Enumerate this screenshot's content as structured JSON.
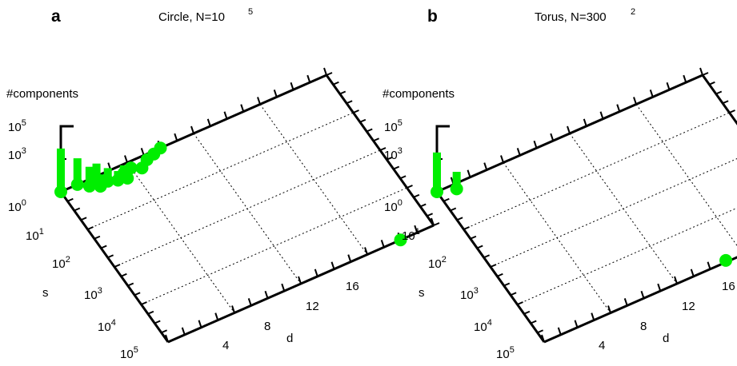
{
  "chart_data": [
    {
      "type": "3d-bar",
      "panel_letter": "a",
      "title": "Circle, N=10",
      "title_exp": "5",
      "zlabel": "#components",
      "xlabel": "s",
      "ylabel": "d",
      "x_scale": "log",
      "z_scale": "log",
      "x_ticks": [
        {
          "base": "10",
          "exp": "1"
        },
        {
          "base": "10",
          "exp": "2"
        },
        {
          "base": "10",
          "exp": "3"
        },
        {
          "base": "10",
          "exp": "4"
        },
        {
          "base": "10",
          "exp": "5"
        }
      ],
      "y_ticks": [
        "4",
        "8",
        "12",
        "16"
      ],
      "z_ticks": [
        {
          "base": "10",
          "exp": "0"
        },
        {
          "base": "10",
          "exp": "3"
        },
        {
          "base": "10",
          "exp": "5"
        }
      ],
      "grid": true,
      "color": "#00ee00",
      "points": [
        {
          "s": 1,
          "d": 0,
          "count": 2000
        },
        {
          "s": 1,
          "d": 1,
          "count": 100
        },
        {
          "s": 1.5,
          "d": 1.5,
          "count": 30
        },
        {
          "s": 1.3,
          "d": 2,
          "count": 20
        },
        {
          "s": 2,
          "d": 2,
          "count": 8
        },
        {
          "s": 1.8,
          "d": 2.5,
          "count": 10
        },
        {
          "s": 2.2,
          "d": 3,
          "count": 5
        },
        {
          "s": 1.7,
          "d": 3.5,
          "count": 4
        },
        {
          "s": 2.5,
          "d": 3.5,
          "count": 3
        },
        {
          "s": 1.5,
          "d": 4,
          "count": 2
        },
        {
          "s": 2,
          "d": 4.5,
          "count": 2
        },
        {
          "s": 1.4,
          "d": 5,
          "count": 1
        },
        {
          "s": 1.2,
          "d": 5.5,
          "count": 1
        },
        {
          "s": 1,
          "d": 6,
          "count": 1
        },
        {
          "s": 100000,
          "d": 14,
          "count": 1
        }
      ]
    },
    {
      "type": "3d-bar",
      "panel_letter": "b",
      "title": "Torus, N=300",
      "title_exp": "2",
      "zlabel": "#components",
      "xlabel": "s",
      "ylabel": "d",
      "x_scale": "log",
      "z_scale": "log",
      "x_ticks": [
        {
          "base": "10",
          "exp": "1"
        },
        {
          "base": "10",
          "exp": "2"
        },
        {
          "base": "10",
          "exp": "3"
        },
        {
          "base": "10",
          "exp": "4"
        },
        {
          "base": "10",
          "exp": "5"
        }
      ],
      "y_ticks": [
        "4",
        "8",
        "12",
        "16"
      ],
      "z_ticks": [
        {
          "base": "10",
          "exp": "0"
        },
        {
          "base": "10",
          "exp": "3"
        },
        {
          "base": "10",
          "exp": "5"
        }
      ],
      "grid": true,
      "color": "#00ee00",
      "points": [
        {
          "s": 1,
          "d": 0,
          "count": 1000
        },
        {
          "s": 1.4,
          "d": 1,
          "count": 20
        },
        {
          "s": 90000,
          "d": 11,
          "count": 1
        }
      ]
    }
  ]
}
